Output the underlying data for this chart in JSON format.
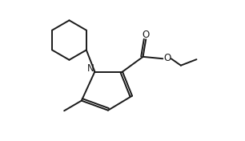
{
  "background_color": "#ffffff",
  "line_color": "#1a1a1a",
  "line_width": 1.4,
  "figsize": [
    3.06,
    1.76
  ],
  "dpi": 100,
  "N_label": "N",
  "O_label": "O",
  "font_size": 8.5
}
